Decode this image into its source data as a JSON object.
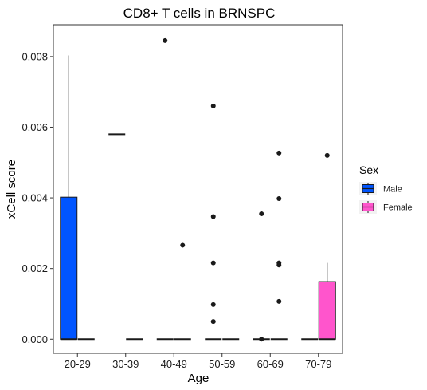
{
  "chart_data": {
    "type": "boxplot",
    "title": "CD8+ T cells in BRNSPC",
    "xlabel": "Age",
    "ylabel": "xCell score",
    "categories": [
      "20-29",
      "30-39",
      "40-49",
      "50-59",
      "60-69",
      "70-79"
    ],
    "ylim": [
      -0.0004,
      0.0089
    ],
    "yticks": [
      0.0,
      0.002,
      0.004,
      0.006,
      0.008
    ],
    "ytick_labels": [
      "0.000",
      "0.002",
      "0.004",
      "0.006",
      "0.008"
    ],
    "grid": false,
    "legend": {
      "title": "Sex",
      "position": "right",
      "entries": [
        {
          "name": "Male",
          "color": "#0055ff"
        },
        {
          "name": "Female",
          "color": "#ff55cc"
        }
      ]
    },
    "series": [
      {
        "name": "Male",
        "color": "#0055ff",
        "boxes": [
          {
            "category": "20-29",
            "min": 0.0,
            "q1": 0.0,
            "median": 0.0,
            "q3": 0.00402,
            "max": 0.00803,
            "outliers": []
          },
          {
            "category": "30-39",
            "min": 0.0058,
            "q1": 0.0058,
            "median": 0.0058,
            "q3": 0.0058,
            "max": 0.0058,
            "outliers": []
          },
          {
            "category": "40-49",
            "min": 0.0,
            "q1": 0.0,
            "median": 0.0,
            "q3": 0.0,
            "max": 0.0,
            "outliers": [
              0.00845
            ]
          },
          {
            "category": "50-59",
            "min": 0.0,
            "q1": 0.0,
            "median": 0.0,
            "q3": 0.0,
            "max": 0.0,
            "outliers": [
              0.0066,
              0.00347,
              0.00216,
              0.00098,
              0.0005
            ]
          },
          {
            "category": "60-69",
            "min": 0.0,
            "q1": 0.0,
            "median": 0.0,
            "q3": 0.0,
            "max": 0.0,
            "outliers": [
              0.00355,
              0.0
            ]
          },
          {
            "category": "70-79",
            "min": 0.0,
            "q1": 0.0,
            "median": 0.0,
            "q3": 0.0,
            "max": 0.0,
            "outliers": []
          }
        ]
      },
      {
        "name": "Female",
        "color": "#ff55cc",
        "boxes": [
          {
            "category": "20-29",
            "min": 0.0,
            "q1": 0.0,
            "median": 0.0,
            "q3": 0.0,
            "max": 0.0,
            "outliers": []
          },
          {
            "category": "30-39",
            "min": 0.0,
            "q1": 0.0,
            "median": 0.0,
            "q3": 0.0,
            "max": 0.0,
            "outliers": []
          },
          {
            "category": "40-49",
            "min": 0.0,
            "q1": 0.0,
            "median": 0.0,
            "q3": 0.0,
            "max": 0.0,
            "outliers": [
              0.00266
            ]
          },
          {
            "category": "50-59",
            "min": 0.0,
            "q1": 0.0,
            "median": 0.0,
            "q3": 0.0,
            "max": 0.0,
            "outliers": []
          },
          {
            "category": "60-69",
            "min": 0.0,
            "q1": 0.0,
            "median": 0.0,
            "q3": 0.0,
            "max": 0.0,
            "outliers": [
              0.00527,
              0.00398,
              0.00216,
              0.0021,
              0.00107
            ]
          },
          {
            "category": "70-79",
            "min": 0.0,
            "q1": 0.0,
            "median": 0.0,
            "q3": 0.00163,
            "max": 0.00216,
            "outliers": [
              0.0052
            ]
          }
        ]
      }
    ]
  }
}
